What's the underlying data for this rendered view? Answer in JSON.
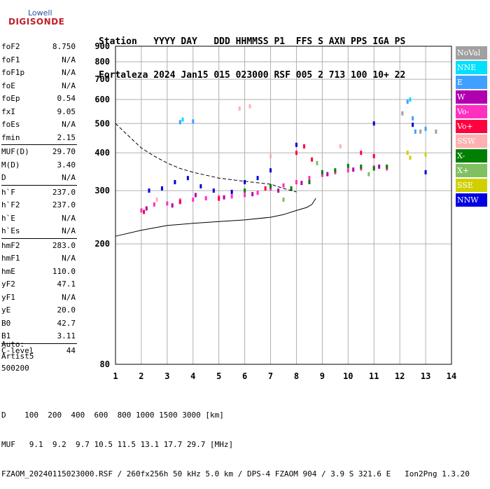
{
  "logo": {
    "line1": "Lowell",
    "line2": "DIGISONDE"
  },
  "header": {
    "line1": "Station   YYYY DAY   DDD HHMMSS P1  FFS S AXN PPS IGA PS",
    "line2": "Fortaleza 2024 Jan15 015 023000 RSF 005 2 713 100 10+ 22"
  },
  "params": [
    [
      {
        "k": "foF2",
        "v": "8.750"
      },
      {
        "k": "foF1",
        "v": "N/A"
      },
      {
        "k": "foF1p",
        "v": "N/A"
      },
      {
        "k": "foE",
        "v": "N/A"
      },
      {
        "k": "foEp",
        "v": "0.54"
      },
      {
        "k": "fxI",
        "v": "9.05"
      },
      {
        "k": "foEs",
        "v": "N/A"
      },
      {
        "k": "fmin",
        "v": "2.15"
      }
    ],
    [
      {
        "k": "MUF(D)",
        "v": "29.70"
      },
      {
        "k": "M(D)",
        "v": "3.40"
      },
      {
        "k": "D",
        "v": "N/A"
      }
    ],
    [
      {
        "k": "h`F",
        "v": "237.0"
      },
      {
        "k": "h`F2",
        "v": "237.0"
      },
      {
        "k": "h`E",
        "v": "N/A"
      },
      {
        "k": "h`Es",
        "v": "N/A"
      }
    ],
    [
      {
        "k": "hmF2",
        "v": "283.0"
      },
      {
        "k": "hmF1",
        "v": "N/A"
      },
      {
        "k": "hmE",
        "v": "110.0"
      },
      {
        "k": "yF2",
        "v": "47.1"
      },
      {
        "k": "yF1",
        "v": "N/A"
      },
      {
        "k": "yE",
        "v": "20.0"
      },
      {
        "k": "B0",
        "v": "42.7"
      },
      {
        "k": "B1",
        "v": "3.11"
      }
    ],
    [
      {
        "k": "C-level",
        "v": "44"
      }
    ]
  ],
  "auto": {
    "line1": "Auto:",
    "line2": "Artist5",
    "line3": "500200"
  },
  "footer": {
    "line1": "D    100  200  400  600  800 1000 1500 3000 [km]",
    "line2": "MUF   9.1  9.2  9.7 10.5 11.5 13.1 17.7 29.7 [MHz]",
    "line3": "FZAOM_20240115023000.RSF / 260fx256h 50 kHz 5.0 km / DPS-4 FZAOM 904 / 3.9 S 321.6 E   Ion2Png 1.3.20"
  },
  "legend": [
    {
      "label": "NoVal",
      "color": "#a0a0a0"
    },
    {
      "label": "NNE",
      "color": "#00e0ff"
    },
    {
      "label": "E",
      "color": "#40a0ff"
    },
    {
      "label": "W",
      "color": "#b000b0"
    },
    {
      "label": "Vo-",
      "color": "#ff30c0"
    },
    {
      "label": "Vo+",
      "color": "#ff0040"
    },
    {
      "label": "SSW",
      "color": "#ffb0b0"
    },
    {
      "label": "X-",
      "color": "#008000"
    },
    {
      "label": "X+",
      "color": "#80c060"
    },
    {
      "label": "SSE",
      "color": "#d0d000"
    },
    {
      "label": "NNW",
      "color": "#0000e0"
    }
  ],
  "chart_data": {
    "type": "scatter",
    "xlim": [
      1,
      14
    ],
    "ylim": [
      80,
      900
    ],
    "x_ticks": [
      "1",
      "2",
      "3",
      "4",
      "5",
      "6",
      "7",
      "8",
      "9",
      "10",
      "11",
      "12",
      "13",
      "14"
    ],
    "y_ticks": [
      "80",
      "200",
      "300",
      "400",
      "500",
      "600",
      "700",
      "800",
      "900"
    ],
    "grid": true,
    "scales": {
      "y_scale": "log"
    },
    "series": [
      {
        "color": "#ff30c0",
        "points": [
          [
            2.0,
            258
          ],
          [
            2.5,
            270
          ],
          [
            3.0,
            272
          ],
          [
            3.5,
            278
          ],
          [
            4.0,
            280
          ],
          [
            4.5,
            283
          ],
          [
            5.0,
            285
          ],
          [
            5.5,
            287
          ],
          [
            6.0,
            290
          ],
          [
            6.5,
            295
          ],
          [
            7.0,
            305
          ],
          [
            7.5,
            312
          ],
          [
            8.0,
            320
          ],
          [
            8.5,
            330
          ],
          [
            9.0,
            338
          ],
          [
            9.5,
            345
          ],
          [
            10.0,
            350
          ],
          [
            10.5,
            355
          ],
          [
            11.0,
            358
          ],
          [
            11.5,
            355
          ]
        ]
      },
      {
        "color": "#b000b0",
        "points": [
          [
            2.2,
            262
          ],
          [
            3.2,
            268
          ],
          [
            4.1,
            290
          ],
          [
            5.2,
            285
          ],
          [
            6.3,
            292
          ],
          [
            7.3,
            300
          ],
          [
            8.2,
            318
          ],
          [
            9.2,
            340
          ],
          [
            10.2,
            352
          ],
          [
            11.2,
            360
          ]
        ]
      },
      {
        "color": "#0000e0",
        "points": [
          [
            2.3,
            300
          ],
          [
            2.8,
            305
          ],
          [
            3.3,
            320
          ],
          [
            3.8,
            330
          ],
          [
            4.3,
            310
          ],
          [
            4.8,
            300
          ],
          [
            5.5,
            297
          ],
          [
            6.0,
            320
          ],
          [
            6.5,
            330
          ],
          [
            7.0,
            350
          ],
          [
            8.0,
            425
          ],
          [
            11.0,
            500
          ],
          [
            12.5,
            495
          ],
          [
            13.0,
            345
          ]
        ]
      },
      {
        "color": "#008000",
        "points": [
          [
            6.0,
            300
          ],
          [
            7.0,
            310
          ],
          [
            7.8,
            305
          ],
          [
            8.5,
            320
          ],
          [
            9.0,
            345
          ],
          [
            9.5,
            350
          ],
          [
            10.0,
            362
          ],
          [
            10.5,
            360
          ],
          [
            11.0,
            355
          ],
          [
            11.5,
            360
          ]
        ]
      },
      {
        "color": "#ff0040",
        "points": [
          [
            2.1,
            255
          ],
          [
            3.5,
            275
          ],
          [
            5.0,
            282
          ],
          [
            6.8,
            305
          ],
          [
            8.0,
            400
          ],
          [
            8.3,
            420
          ],
          [
            8.6,
            380
          ],
          [
            10.5,
            400
          ],
          [
            11.0,
            390
          ]
        ]
      },
      {
        "color": "#40a0ff",
        "points": [
          [
            3.5,
            505
          ],
          [
            4.0,
            508
          ],
          [
            12.3,
            590
          ],
          [
            12.5,
            520
          ],
          [
            12.6,
            470
          ],
          [
            13.0,
            480
          ]
        ]
      },
      {
        "color": "#00e0ff",
        "points": [
          [
            3.6,
            515
          ],
          [
            12.4,
            600
          ]
        ]
      },
      {
        "color": "#ffb0b0",
        "points": [
          [
            2.6,
            280
          ],
          [
            5.8,
            560
          ],
          [
            6.2,
            570
          ],
          [
            7.0,
            390
          ],
          [
            9.7,
            420
          ]
        ]
      },
      {
        "color": "#d0d000",
        "points": [
          [
            12.3,
            400
          ],
          [
            12.4,
            385
          ],
          [
            13.0,
            395
          ]
        ]
      },
      {
        "color": "#80c060",
        "points": [
          [
            7.5,
            280
          ],
          [
            8.8,
            370
          ],
          [
            10.8,
            340
          ]
        ]
      },
      {
        "color": "#a0a0a0",
        "points": [
          [
            12.1,
            540
          ],
          [
            12.8,
            470
          ],
          [
            13.4,
            470
          ]
        ]
      }
    ],
    "curves": [
      {
        "style": "solid",
        "points": [
          [
            1.0,
            212
          ],
          [
            2.0,
            222
          ],
          [
            3.0,
            230
          ],
          [
            4.0,
            234
          ],
          [
            5.0,
            237
          ],
          [
            6.0,
            240
          ],
          [
            7.0,
            245
          ],
          [
            7.5,
            250
          ],
          [
            8.0,
            258
          ],
          [
            8.4,
            264
          ],
          [
            8.6,
            270
          ],
          [
            8.75,
            283
          ]
        ]
      },
      {
        "style": "dashed",
        "points": [
          [
            1.0,
            500
          ],
          [
            1.5,
            455
          ],
          [
            2.0,
            415
          ],
          [
            2.5,
            390
          ],
          [
            3.0,
            370
          ],
          [
            3.5,
            355
          ],
          [
            4.0,
            345
          ],
          [
            5.0,
            330
          ],
          [
            6.0,
            322
          ],
          [
            7.0,
            315
          ],
          [
            7.5,
            305
          ],
          [
            8.0,
            297
          ]
        ]
      }
    ]
  }
}
